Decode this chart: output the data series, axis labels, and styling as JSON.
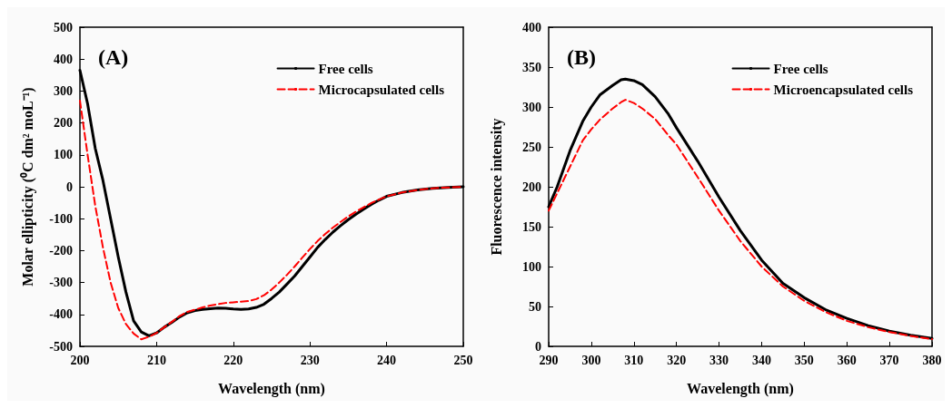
{
  "chart_data": [
    {
      "type": "line",
      "title": "(A)",
      "xlabel": "Wavelength (nm)",
      "ylabel": "Molar ellipticity (⁰C dm² moL⁻¹)",
      "legend": "top right",
      "grid": false,
      "marker": "none",
      "x": [
        200,
        201,
        202,
        203,
        204,
        205,
        206,
        207,
        208,
        209,
        210,
        211,
        212,
        213,
        214,
        215,
        216,
        217,
        218,
        219,
        220,
        221,
        222,
        223,
        224,
        225,
        226,
        227,
        228,
        229,
        230,
        231,
        232,
        233,
        234,
        235,
        236,
        237,
        238,
        239,
        240,
        242,
        244,
        246,
        248,
        250
      ],
      "series": [
        {
          "name": "Free cells",
          "color": "#000000",
          "line_style": "solid",
          "values": [
            365,
            260,
            120,
            20,
            -100,
            -220,
            -330,
            -420,
            -455,
            -467,
            -458,
            -440,
            -425,
            -408,
            -395,
            -388,
            -384,
            -382,
            -380,
            -381,
            -383,
            -384,
            -383,
            -378,
            -368,
            -350,
            -330,
            -305,
            -280,
            -250,
            -220,
            -190,
            -165,
            -142,
            -122,
            -103,
            -86,
            -70,
            -55,
            -42,
            -30,
            -18,
            -10,
            -5,
            -2,
            0
          ]
        },
        {
          "name": "Microcapsulated cells",
          "color": "#ff0000",
          "line_style": "dashed",
          "values": [
            270,
            100,
            -60,
            -190,
            -300,
            -380,
            -430,
            -460,
            -478,
            -470,
            -458,
            -440,
            -423,
            -405,
            -392,
            -385,
            -378,
            -372,
            -368,
            -364,
            -362,
            -360,
            -358,
            -352,
            -340,
            -322,
            -300,
            -276,
            -250,
            -222,
            -195,
            -170,
            -148,
            -128,
            -110,
            -93,
            -78,
            -64,
            -51,
            -40,
            -30,
            -18,
            -10,
            -5,
            -2,
            0
          ]
        }
      ],
      "xlim": [
        200,
        250
      ],
      "xticks": [
        200,
        210,
        220,
        230,
        240,
        250
      ],
      "ylim": [
        -500,
        500
      ],
      "yticks": [
        -500,
        -400,
        -300,
        -200,
        -100,
        0,
        100,
        200,
        300,
        400,
        500
      ]
    },
    {
      "type": "line",
      "title": "(B)",
      "xlabel": "Wavelength (nm)",
      "ylabel": "Fluorescence intensity",
      "legend": "top right",
      "grid": false,
      "marker": "none",
      "x": [
        290,
        292,
        295,
        298,
        300,
        302,
        305,
        307,
        308,
        310,
        312,
        315,
        318,
        320,
        325,
        330,
        335,
        340,
        345,
        350,
        355,
        360,
        365,
        370,
        375,
        380
      ],
      "series": [
        {
          "name": "Free cells",
          "color": "#000000",
          "line_style": "solid",
          "values": [
            175,
            200,
            245,
            282,
            300,
            315,
            327,
            334,
            335,
            333,
            328,
            313,
            292,
            274,
            232,
            187,
            145,
            108,
            79,
            61,
            46,
            35,
            26,
            19,
            14,
            10
          ]
        },
        {
          "name": "Microencapsulated cells",
          "color": "#ff0000",
          "line_style": "dashed",
          "values": [
            170,
            192,
            225,
            258,
            272,
            284,
            298,
            306,
            309,
            305,
            298,
            285,
            265,
            253,
            212,
            170,
            132,
            100,
            75,
            57,
            43,
            32,
            24,
            18,
            13,
            9
          ]
        }
      ],
      "xlim": [
        290,
        380
      ],
      "xticks": [
        290,
        300,
        310,
        320,
        330,
        340,
        350,
        360,
        370,
        380
      ],
      "ylim": [
        0,
        400
      ],
      "yticks": [
        0,
        50,
        100,
        150,
        200,
        250,
        300,
        350,
        400
      ]
    }
  ]
}
